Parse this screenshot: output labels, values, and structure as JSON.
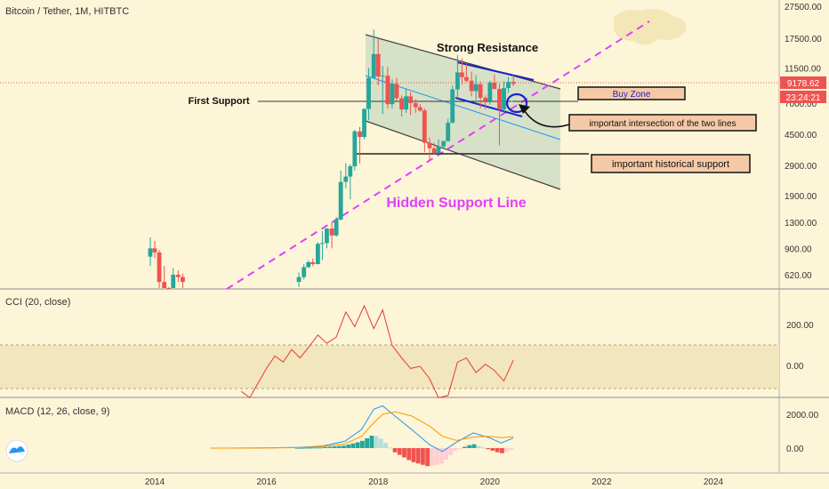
{
  "header": {
    "title": "Bitcoin / Tether, 1M, HITBTC"
  },
  "price_axis": {
    "ticks": [
      "27500.00",
      "17500.00",
      "11500.00",
      "7000.00",
      "4500.00",
      "2900.00",
      "1900.00",
      "1300.00",
      "900.00",
      "620.00"
    ],
    "last_price": "9178.62",
    "countdown": "23:24:21"
  },
  "annotations": {
    "strong_resistance": "Strong Resistance",
    "first_support": "First Support",
    "buy_zone": "Buy Zone",
    "intersection": "important intersection of the two lines",
    "historical_support": "important historical support",
    "hidden_support": "Hidden Support Line"
  },
  "cci": {
    "label": "CCI (20, close)",
    "ticks": [
      "200.00",
      "0.00"
    ]
  },
  "macd": {
    "label": "MACD (12, 26, close, 9)",
    "ticks": [
      "2000.00",
      "0.00"
    ]
  },
  "time_axis": {
    "ticks": [
      "2014",
      "2016",
      "2018",
      "2020",
      "2022",
      "2024"
    ]
  },
  "colors": {
    "up": "#26a69a",
    "down": "#ef5350",
    "cci_line": "#e53935",
    "macd_line": "#2196f3",
    "signal_line": "#ff9800",
    "hidden_line": "#e040fb"
  },
  "chart_data": {
    "type": "candlestick",
    "title": "Bitcoin / Tether, 1M, HITBTC",
    "y_scale": "log",
    "ylim": [
      500,
      30000
    ],
    "x_ticks": [
      2014,
      2016,
      2018,
      2020,
      2022,
      2024
    ],
    "candles": [
      {
        "t": 2013.92,
        "o": 800,
        "h": 1050,
        "l": 700,
        "c": 900
      },
      {
        "t": 2014.0,
        "o": 900,
        "h": 1000,
        "l": 780,
        "c": 850
      },
      {
        "t": 2014.08,
        "o": 850,
        "h": 880,
        "l": 500,
        "c": 560
      },
      {
        "t": 2014.17,
        "o": 560,
        "h": 700,
        "l": 420,
        "c": 450
      },
      {
        "t": 2014.25,
        "o": 450,
        "h": 520,
        "l": 400,
        "c": 440
      },
      {
        "t": 2014.33,
        "o": 440,
        "h": 680,
        "l": 430,
        "c": 620
      },
      {
        "t": 2014.42,
        "o": 620,
        "h": 660,
        "l": 560,
        "c": 600
      },
      {
        "t": 2014.5,
        "o": 600,
        "h": 630,
        "l": 500,
        "c": 560
      },
      {
        "t": 2016.58,
        "o": 560,
        "h": 640,
        "l": 520,
        "c": 600
      },
      {
        "t": 2016.67,
        "o": 600,
        "h": 720,
        "l": 580,
        "c": 690
      },
      {
        "t": 2016.75,
        "o": 690,
        "h": 760,
        "l": 680,
        "c": 740
      },
      {
        "t": 2016.83,
        "o": 740,
        "h": 780,
        "l": 700,
        "c": 720
      },
      {
        "t": 2016.92,
        "o": 720,
        "h": 980,
        "l": 720,
        "c": 960
      },
      {
        "t": 2017.0,
        "o": 960,
        "h": 1150,
        "l": 760,
        "c": 970
      },
      {
        "t": 2017.08,
        "o": 970,
        "h": 1200,
        "l": 900,
        "c": 1190
      },
      {
        "t": 2017.17,
        "o": 1190,
        "h": 1300,
        "l": 900,
        "c": 1080
      },
      {
        "t": 2017.25,
        "o": 1080,
        "h": 1400,
        "l": 1060,
        "c": 1350
      },
      {
        "t": 2017.33,
        "o": 1350,
        "h": 2700,
        "l": 1340,
        "c": 2300
      },
      {
        "t": 2017.42,
        "o": 2300,
        "h": 3000,
        "l": 2100,
        "c": 2480
      },
      {
        "t": 2017.5,
        "o": 2480,
        "h": 2950,
        "l": 1800,
        "c": 2870
      },
      {
        "t": 2017.58,
        "o": 2870,
        "h": 4800,
        "l": 2700,
        "c": 4700
      },
      {
        "t": 2017.67,
        "o": 4700,
        "h": 5000,
        "l": 2980,
        "c": 4340
      },
      {
        "t": 2017.75,
        "o": 4340,
        "h": 6500,
        "l": 4200,
        "c": 6450
      },
      {
        "t": 2017.83,
        "o": 6450,
        "h": 11500,
        "l": 5500,
        "c": 10000
      },
      {
        "t": 2017.92,
        "o": 10000,
        "h": 19800,
        "l": 10000,
        "c": 14000
      },
      {
        "t": 2018.0,
        "o": 14000,
        "h": 17300,
        "l": 9000,
        "c": 10200
      },
      {
        "t": 2018.08,
        "o": 10200,
        "h": 11800,
        "l": 6000,
        "c": 10300
      },
      {
        "t": 2018.17,
        "o": 10300,
        "h": 11700,
        "l": 6500,
        "c": 6900
      },
      {
        "t": 2018.25,
        "o": 6900,
        "h": 9800,
        "l": 6500,
        "c": 9200
      },
      {
        "t": 2018.33,
        "o": 9200,
        "h": 10000,
        "l": 7100,
        "c": 7500
      },
      {
        "t": 2018.42,
        "o": 7500,
        "h": 7800,
        "l": 5800,
        "c": 6400
      },
      {
        "t": 2018.5,
        "o": 6400,
        "h": 8500,
        "l": 6100,
        "c": 7700
      },
      {
        "t": 2018.58,
        "o": 7700,
        "h": 8200,
        "l": 5900,
        "c": 7000
      },
      {
        "t": 2018.67,
        "o": 7000,
        "h": 7400,
        "l": 6100,
        "c": 6600
      },
      {
        "t": 2018.75,
        "o": 6600,
        "h": 6900,
        "l": 6200,
        "c": 6300
      },
      {
        "t": 2018.83,
        "o": 6300,
        "h": 6500,
        "l": 3500,
        "c": 4000
      },
      {
        "t": 2018.92,
        "o": 4000,
        "h": 4300,
        "l": 3100,
        "c": 3700
      },
      {
        "t": 2019.0,
        "o": 3700,
        "h": 4000,
        "l": 3400,
        "c": 3450
      },
      {
        "t": 2019.08,
        "o": 3450,
        "h": 4200,
        "l": 3400,
        "c": 3800
      },
      {
        "t": 2019.17,
        "o": 3800,
        "h": 4100,
        "l": 3700,
        "c": 4100
      },
      {
        "t": 2019.25,
        "o": 4100,
        "h": 5600,
        "l": 4050,
        "c": 5300
      },
      {
        "t": 2019.33,
        "o": 5300,
        "h": 9000,
        "l": 5300,
        "c": 8500
      },
      {
        "t": 2019.42,
        "o": 8500,
        "h": 13800,
        "l": 7500,
        "c": 10800
      },
      {
        "t": 2019.5,
        "o": 10800,
        "h": 13200,
        "l": 9100,
        "c": 10100
      },
      {
        "t": 2019.58,
        "o": 10100,
        "h": 12300,
        "l": 9400,
        "c": 9600
      },
      {
        "t": 2019.67,
        "o": 9600,
        "h": 10900,
        "l": 7700,
        "c": 8300
      },
      {
        "t": 2019.75,
        "o": 8300,
        "h": 10400,
        "l": 7300,
        "c": 9150
      },
      {
        "t": 2019.83,
        "o": 9150,
        "h": 9500,
        "l": 6500,
        "c": 7550
      },
      {
        "t": 2019.92,
        "o": 7550,
        "h": 7800,
        "l": 6400,
        "c": 7200
      },
      {
        "t": 2020.0,
        "o": 7200,
        "h": 9600,
        "l": 6850,
        "c": 9350
      },
      {
        "t": 2020.08,
        "o": 9350,
        "h": 10500,
        "l": 8500,
        "c": 8550
      },
      {
        "t": 2020.17,
        "o": 8550,
        "h": 9200,
        "l": 3850,
        "c": 6400
      },
      {
        "t": 2020.25,
        "o": 6400,
        "h": 9500,
        "l": 6150,
        "c": 8650
      },
      {
        "t": 2020.33,
        "o": 8650,
        "h": 10100,
        "l": 8100,
        "c": 9450
      },
      {
        "t": 2020.42,
        "o": 9450,
        "h": 10400,
        "l": 8900,
        "c": 9180
      }
    ],
    "cci_series": [
      {
        "t": 2015.55,
        "v": -120
      },
      {
        "t": 2015.7,
        "v": -150
      },
      {
        "t": 2015.85,
        "v": -80
      },
      {
        "t": 2016.0,
        "v": -10
      },
      {
        "t": 2016.15,
        "v": 50
      },
      {
        "t": 2016.3,
        "v": 20
      },
      {
        "t": 2016.45,
        "v": 80
      },
      {
        "t": 2016.6,
        "v": 40
      },
      {
        "t": 2016.75,
        "v": 90
      },
      {
        "t": 2016.92,
        "v": 150
      },
      {
        "t": 2017.08,
        "v": 110
      },
      {
        "t": 2017.25,
        "v": 140
      },
      {
        "t": 2017.42,
        "v": 260
      },
      {
        "t": 2017.58,
        "v": 190
      },
      {
        "t": 2017.75,
        "v": 290
      },
      {
        "t": 2017.92,
        "v": 180
      },
      {
        "t": 2018.08,
        "v": 270
      },
      {
        "t": 2018.25,
        "v": 100
      },
      {
        "t": 2018.42,
        "v": 40
      },
      {
        "t": 2018.58,
        "v": -10
      },
      {
        "t": 2018.75,
        "v": 0
      },
      {
        "t": 2018.92,
        "v": -60
      },
      {
        "t": 2019.08,
        "v": -150
      },
      {
        "t": 2019.25,
        "v": -140
      },
      {
        "t": 2019.42,
        "v": 20
      },
      {
        "t": 2019.58,
        "v": 40
      },
      {
        "t": 2019.75,
        "v": -30
      },
      {
        "t": 2019.92,
        "v": 10
      },
      {
        "t": 2020.08,
        "v": -20
      },
      {
        "t": 2020.25,
        "v": -70
      },
      {
        "t": 2020.42,
        "v": 30
      }
    ],
    "macd_series": [
      {
        "t": 2015.0,
        "v": 0
      },
      {
        "t": 2016.0,
        "v": 10
      },
      {
        "t": 2016.6,
        "v": 50
      },
      {
        "t": 2017.0,
        "v": 120
      },
      {
        "t": 2017.4,
        "v": 400
      },
      {
        "t": 2017.7,
        "v": 1100
      },
      {
        "t": 2017.92,
        "v": 2300
      },
      {
        "t": 2018.08,
        "v": 2500
      },
      {
        "t": 2018.3,
        "v": 1900
      },
      {
        "t": 2018.6,
        "v": 1100
      },
      {
        "t": 2018.92,
        "v": 200
      },
      {
        "t": 2019.15,
        "v": -200
      },
      {
        "t": 2019.4,
        "v": 350
      },
      {
        "t": 2019.7,
        "v": 900
      },
      {
        "t": 2020.0,
        "v": 600
      },
      {
        "t": 2020.2,
        "v": 300
      },
      {
        "t": 2020.42,
        "v": 600
      }
    ],
    "signal_series": [
      {
        "t": 2015.0,
        "v": 0
      },
      {
        "t": 2016.0,
        "v": 5
      },
      {
        "t": 2016.6,
        "v": 30
      },
      {
        "t": 2017.0,
        "v": 80
      },
      {
        "t": 2017.4,
        "v": 250
      },
      {
        "t": 2017.7,
        "v": 700
      },
      {
        "t": 2017.92,
        "v": 1500
      },
      {
        "t": 2018.08,
        "v": 2000
      },
      {
        "t": 2018.3,
        "v": 2150
      },
      {
        "t": 2018.6,
        "v": 1900
      },
      {
        "t": 2018.92,
        "v": 1300
      },
      {
        "t": 2019.15,
        "v": 700
      },
      {
        "t": 2019.4,
        "v": 450
      },
      {
        "t": 2019.7,
        "v": 650
      },
      {
        "t": 2020.0,
        "v": 700
      },
      {
        "t": 2020.2,
        "v": 620
      },
      {
        "t": 2020.42,
        "v": 680
      }
    ]
  }
}
